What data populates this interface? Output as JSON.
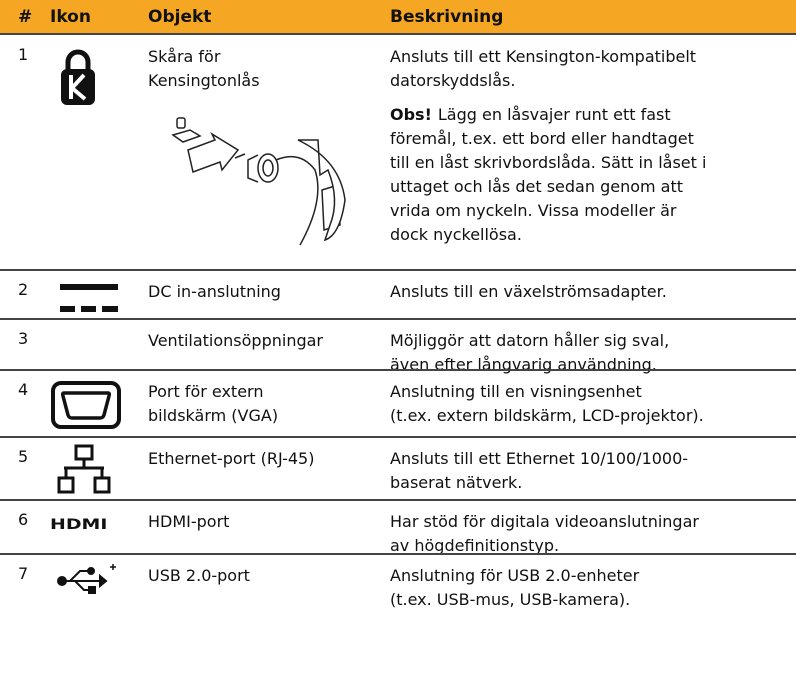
{
  "header": [
    "#",
    "Ikon",
    "Objekt",
    "Beskrivning"
  ],
  "rows": [
    {
      "number": "1",
      "object": [
        "Skåra för",
        "Kensingtonlås"
      ],
      "description": [
        "Ansluts till ett Kensington-kompatibelt",
        "datorskyddslås."
      ],
      "note_label": "Obs!",
      "note": [
        "Lägg en låsvajer runt ett fast",
        "föremål, t.ex. ett bord eller handtaget",
        "till en låst skrivbordslåda. Sätt in låset i",
        "uttaget och lås det sedan genom att",
        "vrida om nyckeln. Vissa modeller är",
        "dock nyckellösa."
      ]
    },
    {
      "number": "2",
      "object": [
        "DC in-anslutning"
      ],
      "description": [
        "Ansluts till en växelströmsadapter."
      ]
    },
    {
      "number": "3",
      "object": [
        "Ventilationsöppningar"
      ],
      "description": [
        "Möjliggör att datorn håller sig sval,",
        "även efter långvarig användning."
      ]
    },
    {
      "number": "4",
      "object": [
        "Port för extern",
        "bildskärm (VGA)"
      ],
      "description": [
        "Anslutning till en visningsenhet",
        "(t.ex. extern bildskärm, LCD-projektor)."
      ]
    },
    {
      "number": "5",
      "object": [
        "Ethernet-port (RJ-45)"
      ],
      "description": [
        "Ansluts till ett Ethernet 10/100/1000-",
        "baserat nätverk."
      ]
    },
    {
      "number": "6",
      "icon_text": "HDMI",
      "object": [
        "HDMI-port"
      ],
      "description": [
        "Har stöd för digitala videoanslutningar",
        "av högdefinitionstyp."
      ]
    },
    {
      "number": "7",
      "object": [
        "USB 2.0-port"
      ],
      "description": [
        "Anslutning för USB 2.0-enheter",
        "(t.ex. USB-mus, USB-kamera)."
      ]
    }
  ]
}
